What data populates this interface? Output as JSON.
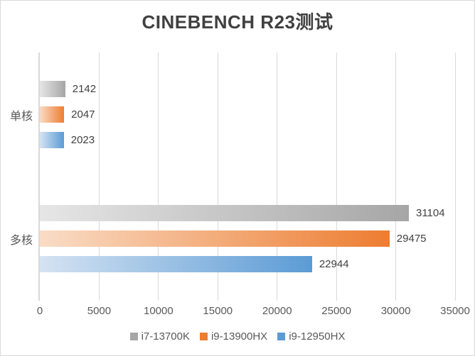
{
  "chart_data": {
    "type": "bar",
    "orientation": "horizontal",
    "title": "CINEBENCH R23测试",
    "categories": [
      "单核",
      "多核"
    ],
    "series": [
      {
        "name": "i7-13700K",
        "color": "#A6A6A6",
        "color_light": "#E6E6E6",
        "values": [
          2142,
          31104
        ]
      },
      {
        "name": "i9-13900HX",
        "color": "#ED7D31",
        "color_light": "#F9DCC6",
        "values": [
          2047,
          29475
        ]
      },
      {
        "name": "i9-12950HX",
        "color": "#5B9BD5",
        "color_light": "#D5E3F2",
        "values": [
          2023,
          22944
        ]
      }
    ],
    "xlim": [
      0,
      35000
    ],
    "xticks": [
      0,
      5000,
      10000,
      15000,
      20000,
      25000,
      30000,
      35000
    ],
    "grid": true,
    "legend_position": "bottom",
    "colors": {
      "gridline": "#D9D9D9",
      "axis_line": "#D9D9D9",
      "title_text": "#404040",
      "value_label_text": "#404040",
      "tick_text": "#595959",
      "border": "#D9D9D9"
    }
  }
}
